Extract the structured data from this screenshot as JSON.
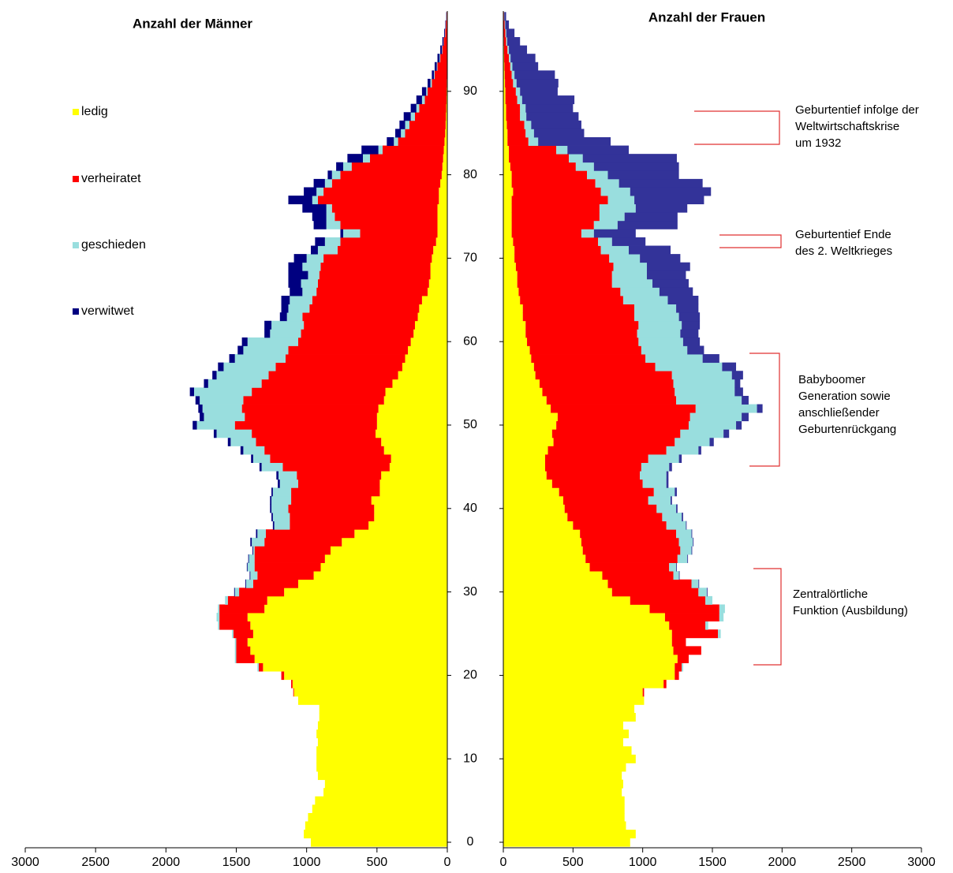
{
  "chart_data": [
    {
      "type": "bar",
      "horizontal": true,
      "stacked": true,
      "reversed": true,
      "title": "Anzahl der Männer",
      "categories": [
        0,
        null,
        null,
        null,
        null,
        null,
        null,
        null,
        null,
        null,
        10,
        null,
        null,
        null,
        null,
        null,
        null,
        null,
        null,
        null,
        20,
        null,
        null,
        null,
        null,
        null,
        null,
        null,
        null,
        null,
        30,
        null,
        null,
        null,
        null,
        null,
        null,
        null,
        null,
        null,
        40,
        null,
        null,
        null,
        null,
        null,
        null,
        null,
        null,
        null,
        50,
        null,
        null,
        null,
        null,
        null,
        null,
        null,
        null,
        null,
        60,
        null,
        null,
        null,
        null,
        null,
        null,
        null,
        null,
        null,
        70,
        null,
        null,
        null,
        null,
        null,
        null,
        null,
        null,
        null,
        80,
        null,
        null,
        null,
        null,
        null,
        null,
        null,
        null,
        null,
        90,
        null,
        null,
        null,
        null,
        null,
        null,
        null,
        null,
        null
      ],
      "xlim": [
        0,
        3000
      ],
      "xticks": [
        0,
        500,
        1000,
        1500,
        2000,
        2500,
        3000
      ],
      "series": [
        {
          "name": "ledig",
          "color": "#ffff00",
          "values": [
            970,
            1020,
            1010,
            990,
            960,
            940,
            880,
            870,
            920,
            930,
            930,
            930,
            920,
            930,
            920,
            910,
            910,
            1060,
            1090,
            1100,
            1160,
            1310,
            1370,
            1400,
            1420,
            1380,
            1400,
            1420,
            1300,
            1280,
            1160,
            1060,
            950,
            900,
            870,
            830,
            750,
            660,
            560,
            520,
            520,
            540,
            480,
            480,
            470,
            410,
            400,
            450,
            470,
            510,
            500,
            500,
            490,
            450,
            440,
            390,
            350,
            320,
            300,
            280,
            260,
            240,
            230,
            210,
            200,
            180,
            140,
            130,
            120,
            120,
            110,
            100,
            80,
            70,
            70,
            70,
            70,
            60,
            60,
            50,
            40,
            35,
            30,
            25,
            20,
            15,
            12,
            10,
            8,
            6,
            5,
            4,
            3,
            3,
            2,
            2,
            1,
            1,
            1,
            1
          ]
        },
        {
          "name": "verheiratet",
          "color": "#ff0000",
          "values": [
            0,
            0,
            0,
            0,
            0,
            0,
            0,
            0,
            0,
            0,
            0,
            0,
            0,
            0,
            0,
            0,
            0,
            0,
            5,
            10,
            20,
            30,
            130,
            100,
            80,
            140,
            220,
            200,
            320,
            280,
            320,
            320,
            400,
            470,
            500,
            540,
            550,
            630,
            560,
            600,
            610,
            570,
            630,
            580,
            600,
            760,
            860,
            850,
            890,
            880,
            1010,
            940,
            970,
            1000,
            950,
            930,
            920,
            900,
            850,
            850,
            800,
            800,
            790,
            820,
            780,
            780,
            790,
            790,
            790,
            780,
            770,
            680,
            680,
            550,
            690,
            730,
            750,
            860,
            820,
            770,
            720,
            645,
            520,
            435,
            330,
            285,
            258,
            220,
            192,
            154,
            135,
            106,
            87,
            67,
            48,
            33,
            24,
            14,
            9,
            4
          ]
        },
        {
          "name": "geschieden",
          "color": "#99dede",
          "values": [
            0,
            0,
            0,
            0,
            0,
            0,
            0,
            0,
            0,
            0,
            0,
            0,
            0,
            0,
            0,
            0,
            0,
            0,
            0,
            0,
            0,
            10,
            10,
            10,
            10,
            10,
            10,
            20,
            10,
            20,
            30,
            50,
            50,
            50,
            40,
            10,
            90,
            60,
            110,
            120,
            120,
            140,
            130,
            130,
            130,
            150,
            120,
            150,
            180,
            250,
            270,
            290,
            280,
            310,
            410,
            380,
            370,
            370,
            360,
            320,
            360,
            220,
            230,
            110,
            150,
            160,
            100,
            120,
            80,
            130,
            120,
            140,
            110,
            120,
            100,
            60,
            40,
            40,
            50,
            50,
            60,
            60,
            50,
            30,
            30,
            30,
            30,
            30,
            20,
            20,
            10,
            10,
            5,
            5,
            5,
            3,
            2,
            2,
            1,
            1
          ]
        },
        {
          "name": "verwitwet",
          "color": "#000080",
          "values": [
            0,
            0,
            0,
            0,
            0,
            0,
            0,
            0,
            0,
            0,
            0,
            0,
            0,
            0,
            0,
            0,
            0,
            0,
            0,
            0,
            0,
            0,
            0,
            0,
            0,
            0,
            0,
            0,
            0,
            0,
            5,
            5,
            5,
            5,
            5,
            5,
            10,
            10,
            10,
            10,
            10,
            10,
            10,
            15,
            15,
            15,
            15,
            20,
            20,
            20,
            30,
            30,
            30,
            30,
            30,
            30,
            30,
            40,
            40,
            40,
            40,
            40,
            50,
            50,
            50,
            60,
            90,
            90,
            140,
            100,
            90,
            50,
            70,
            20,
            90,
            100,
            170,
            170,
            90,
            80,
            30,
            50,
            110,
            120,
            50,
            40,
            40,
            50,
            40,
            40,
            30,
            20,
            15,
            15,
            15,
            12,
            8,
            5,
            3,
            2
          ]
        }
      ]
    },
    {
      "type": "bar",
      "horizontal": true,
      "stacked": true,
      "reversed": false,
      "title": "Anzahl der Frauen",
      "xlim": [
        0,
        3000
      ],
      "xticks": [
        0,
        500,
        1000,
        1500,
        2000,
        2500,
        3000
      ],
      "series": [
        {
          "color": "#ffff00",
          "values": [
            910,
            950,
            880,
            870,
            870,
            870,
            850,
            860,
            850,
            880,
            950,
            920,
            860,
            900,
            860,
            950,
            940,
            1010,
            1000,
            1150,
            1230,
            1230,
            1250,
            1220,
            1210,
            1210,
            1190,
            1160,
            1050,
            910,
            780,
            750,
            710,
            620,
            590,
            570,
            560,
            550,
            500,
            460,
            440,
            430,
            400,
            350,
            310,
            300,
            300,
            320,
            360,
            350,
            380,
            390,
            340,
            310,
            280,
            260,
            230,
            220,
            200,
            190,
            170,
            160,
            160,
            140,
            140,
            120,
            110,
            100,
            100,
            90,
            80,
            80,
            70,
            60,
            60,
            60,
            60,
            60,
            70,
            60,
            60,
            50,
            40,
            40,
            30,
            30,
            25,
            20,
            20,
            15,
            15,
            12,
            10,
            8,
            6,
            5,
            4,
            3,
            2,
            1
          ]
        },
        {
          "color": "#ff0000",
          "values": [
            0,
            0,
            0,
            0,
            0,
            0,
            0,
            0,
            0,
            0,
            0,
            0,
            0,
            0,
            0,
            0,
            0,
            0,
            10,
            20,
            30,
            50,
            80,
            200,
            100,
            330,
            260,
            390,
            500,
            540,
            620,
            600,
            510,
            570,
            660,
            700,
            700,
            690,
            670,
            680,
            660,
            610,
            680,
            650,
            670,
            690,
            740,
            850,
            870,
            920,
            950,
            950,
            1040,
            930,
            950,
            960,
            980,
            870,
            820,
            800,
            800,
            800,
            810,
            800,
            800,
            740,
            730,
            680,
            680,
            700,
            680,
            620,
            610,
            500,
            590,
            630,
            630,
            690,
            630,
            600,
            540,
            470,
            430,
            340,
            150,
            130,
            125,
            100,
            100,
            85,
            75,
            58,
            50,
            42,
            34,
            25,
            16,
            12,
            8,
            4
          ]
        },
        {
          "color": "#99dede",
          "values": [
            0,
            0,
            0,
            0,
            0,
            0,
            0,
            0,
            0,
            0,
            0,
            0,
            0,
            0,
            0,
            0,
            0,
            0,
            0,
            0,
            0,
            10,
            0,
            0,
            0,
            20,
            20,
            30,
            40,
            50,
            60,
            50,
            40,
            50,
            70,
            80,
            100,
            110,
            140,
            140,
            140,
            160,
            150,
            170,
            190,
            200,
            220,
            230,
            250,
            310,
            340,
            370,
            440,
            470,
            430,
            440,
            430,
            480,
            410,
            330,
            320,
            310,
            310,
            320,
            300,
            320,
            280,
            290,
            250,
            240,
            220,
            200,
            100,
            90,
            170,
            180,
            260,
            190,
            210,
            170,
            150,
            130,
            100,
            80,
            70,
            60,
            50,
            45,
            40,
            35,
            30,
            25,
            20,
            15,
            12,
            10,
            8,
            6,
            4,
            2
          ]
        },
        {
          "color": "#333399",
          "values": [
            0,
            0,
            0,
            0,
            0,
            0,
            0,
            0,
            0,
            0,
            0,
            0,
            0,
            0,
            0,
            0,
            0,
            0,
            0,
            0,
            0,
            0,
            0,
            0,
            0,
            0,
            0,
            0,
            0,
            0,
            5,
            5,
            5,
            5,
            5,
            5,
            5,
            5,
            5,
            10,
            10,
            10,
            15,
            15,
            15,
            20,
            20,
            20,
            30,
            40,
            40,
            50,
            40,
            50,
            60,
            40,
            80,
            100,
            120,
            120,
            120,
            130,
            130,
            150,
            160,
            220,
            240,
            260,
            280,
            310,
            290,
            300,
            240,
            300,
            430,
            380,
            370,
            500,
            580,
            600,
            510,
            610,
            675,
            440,
            520,
            360,
            360,
            375,
            340,
            375,
            270,
            300,
            290,
            185,
            178,
            130,
            92,
            59,
            26,
            13
          ]
        }
      ],
      "annotations": [
        {
          "lines": [
            "Geburtentief infolge der",
            "Weltwirtschaftskrise",
            "um 1932"
          ]
        },
        {
          "lines": [
            "Geburtentief Ende",
            "des 2. Weltkrieges"
          ]
        },
        {
          "lines": [
            "Babyboomer",
            "Generation sowie",
            "anschließender",
            "Geburtenrückgang"
          ]
        },
        {
          "lines": [
            "Zentralörtliche",
            "Funktion (Ausbildung)"
          ]
        }
      ]
    }
  ]
}
